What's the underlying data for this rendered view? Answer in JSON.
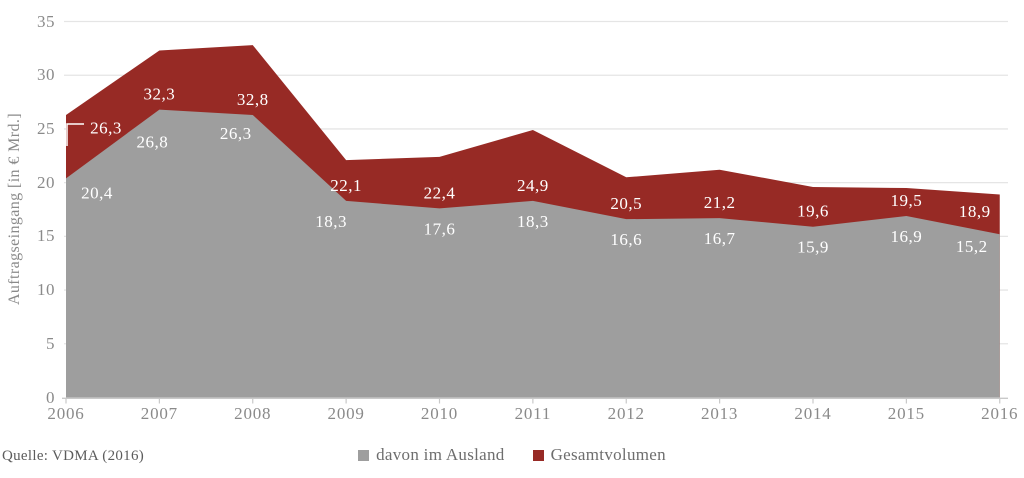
{
  "source_note": "Quelle: VDMA (2016)",
  "colors": {
    "gesamtvolumen": "#972a25",
    "ausland": "#9e9e9e",
    "gridline": "#e5e5e5",
    "axis_line": "#c9c9c9",
    "axis_text": "#8a8a8a",
    "data_label": "#ffffff"
  },
  "chart_data": {
    "type": "area",
    "title": "",
    "xlabel": "",
    "ylabel": "Auftragseingang [in € Mrd.]",
    "categories": [
      "2006",
      "2007",
      "2008",
      "2009",
      "2010",
      "2011",
      "2012",
      "2013",
      "2014",
      "2015",
      "2016"
    ],
    "series": [
      {
        "name": "Gesamtvolumen",
        "color": "#972a25",
        "values": [
          26.3,
          32.3,
          32.8,
          22.1,
          22.4,
          24.9,
          20.5,
          21.2,
          19.6,
          19.5,
          18.9
        ]
      },
      {
        "name": "davon im Ausland",
        "color": "#9e9e9e",
        "values": [
          20.4,
          26.8,
          26.3,
          18.3,
          17.6,
          18.3,
          16.6,
          16.7,
          15.9,
          16.9,
          15.2
        ]
      }
    ],
    "ylim": [
      0,
      35
    ],
    "ytick_step": 5,
    "grid": true,
    "legend_position": "bottom-center",
    "decimal_separator": ",",
    "data_labels_visible": true
  },
  "legend": {
    "items": [
      {
        "label": "davon im Ausland",
        "color": "#9e9e9e"
      },
      {
        "label": "Gesamtvolumen",
        "color": "#972a25"
      }
    ]
  }
}
